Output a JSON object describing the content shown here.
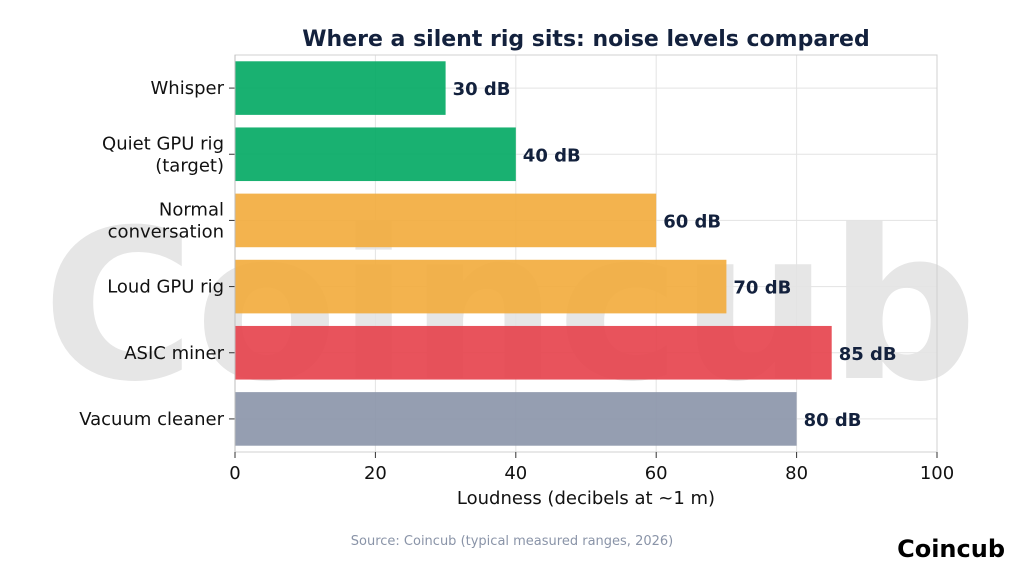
{
  "watermark": "Coincub",
  "brand": "Coincub",
  "source": "Source: Coincub (typical measured ranges, 2026)",
  "colors": {
    "green": "#00a862",
    "orange": "#f2ab3b",
    "red": "#e5404a",
    "gray": "#8a93a8",
    "title": "#13213d"
  },
  "chart_data": {
    "type": "bar",
    "orientation": "horizontal",
    "title": "Where a silent rig sits: noise levels compared",
    "xlabel": "Loudness (decibels at ~1 m)",
    "ylabel": "",
    "xlim": [
      0,
      100
    ],
    "xticks": [
      0,
      20,
      40,
      60,
      80,
      100
    ],
    "grid": true,
    "categories": [
      "Whisper",
      "Quiet GPU rig\n(target)",
      "Normal\nconversation",
      "Loud GPU rig",
      "ASIC miner",
      "Vacuum cleaner"
    ],
    "values": [
      30,
      40,
      60,
      70,
      85,
      80
    ],
    "value_labels": [
      "30 dB",
      "40 dB",
      "60 dB",
      "70 dB",
      "85 dB",
      "80 dB"
    ],
    "bar_colors": [
      "#00a862",
      "#00a862",
      "#f2ab3b",
      "#f2ab3b",
      "#e5404a",
      "#8a93a8"
    ]
  }
}
